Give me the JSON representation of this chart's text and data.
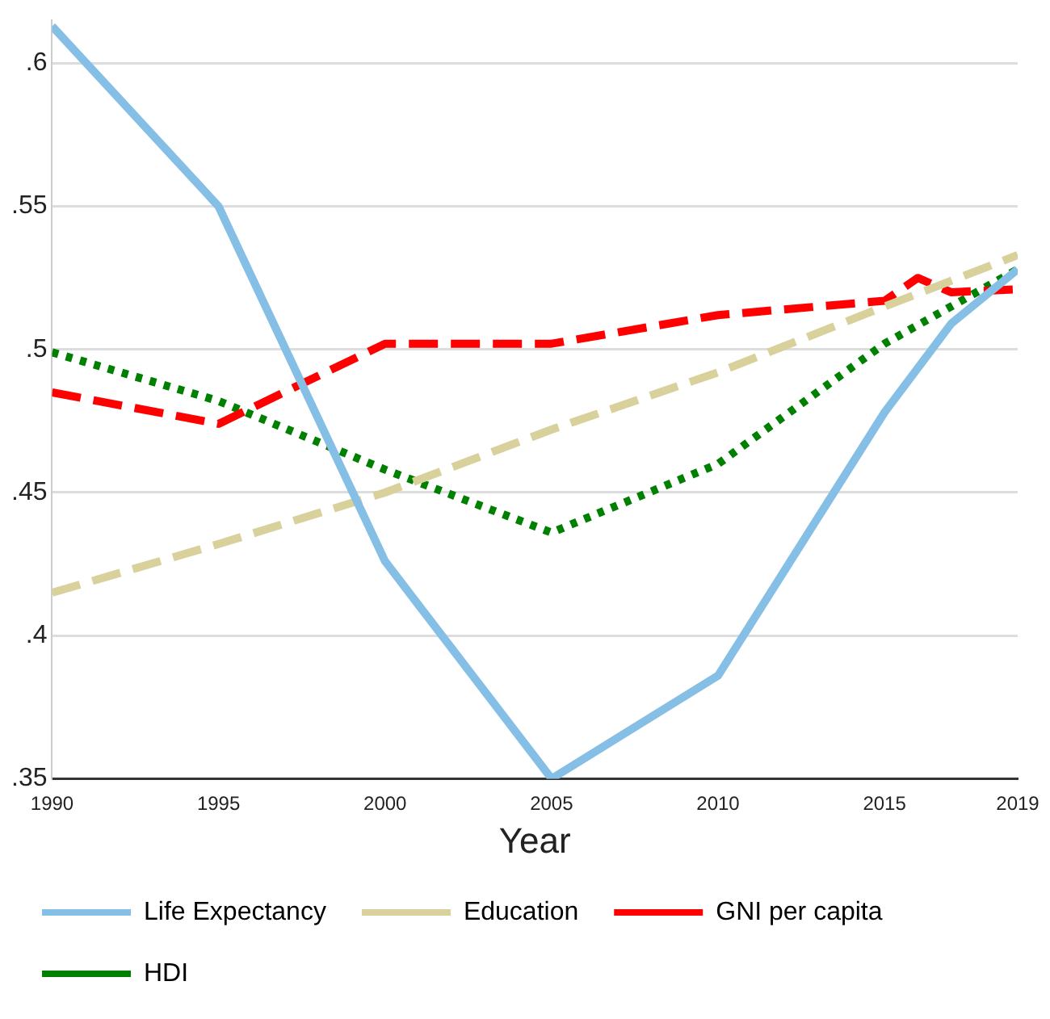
{
  "chart_data": {
    "type": "line",
    "xlabel": "Year",
    "series": [
      {
        "name": "Life Expectancy",
        "color": "#85bfe6",
        "line_style": "solid",
        "x": [
          1990,
          1995,
          2000,
          2005,
          2010,
          2015,
          2017,
          2019
        ],
        "values": [
          0.613,
          0.55,
          0.426,
          0.35,
          0.386,
          0.478,
          0.509,
          0.528
        ]
      },
      {
        "name": "Education",
        "color": "#d8d19c",
        "line_style": "dashed",
        "x": [
          1990,
          1995,
          2000,
          2005,
          2010,
          2015,
          2019
        ],
        "values": [
          0.415,
          0.432,
          0.45,
          0.472,
          0.492,
          0.515,
          0.533
        ]
      },
      {
        "name": "GNI per capita",
        "color": "#ff0000",
        "line_style": "dashed",
        "x": [
          1990,
          1995,
          2000,
          2005,
          2010,
          2015,
          2016,
          2017,
          2019
        ],
        "values": [
          0.485,
          0.474,
          0.502,
          0.502,
          0.512,
          0.517,
          0.525,
          0.52,
          0.521
        ]
      },
      {
        "name": "HDI",
        "color": "#008000",
        "line_style": "dotted",
        "x": [
          1990,
          1995,
          2000,
          2005,
          2010,
          2015,
          2017,
          2019
        ],
        "values": [
          0.499,
          0.482,
          0.458,
          0.436,
          0.46,
          0.502,
          0.515,
          0.528
        ]
      }
    ],
    "xlim": [
      1990,
      2019
    ],
    "xticks": [
      1990,
      1995,
      2000,
      2005,
      2010,
      2015,
      2019
    ],
    "ylim": [
      0.35,
      0.615
    ],
    "yticks": [
      {
        "value": 0.35,
        "label": ".35"
      },
      {
        "value": 0.4,
        "label": ".4"
      },
      {
        "value": 0.45,
        "label": ".45"
      },
      {
        "value": 0.5,
        "label": ".5"
      },
      {
        "value": 0.55,
        "label": ".55"
      },
      {
        "value": 0.6,
        "label": ".6"
      }
    ],
    "grid": "y",
    "legend": "bottom",
    "marker": "none"
  }
}
